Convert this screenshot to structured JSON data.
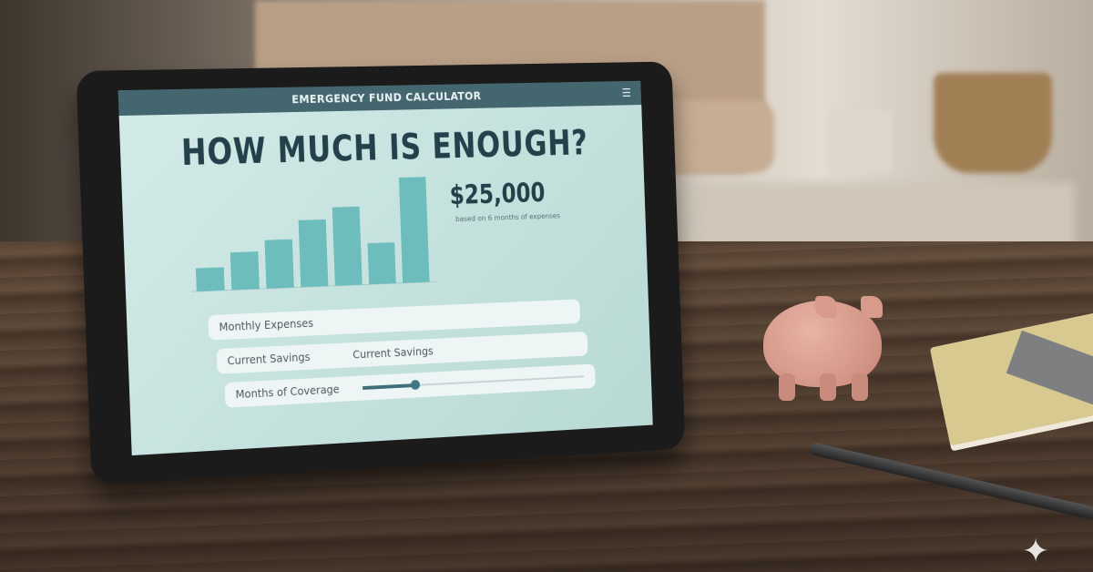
{
  "app": {
    "title": "EMERGENCY FUND CALCULATOR",
    "menu_icon": "hamburger-menu-icon",
    "headline": "HOW MUCH IS ENOUGH?",
    "result": {
      "amount": "$25,000",
      "caption": "based on 6 months of expenses"
    },
    "fields": [
      {
        "label": "Monthly Expenses",
        "value": ""
      },
      {
        "label": "Current Savings",
        "value": "Current Savings"
      },
      {
        "label": "Months of Coverage",
        "slider_fraction": 0.23
      }
    ]
  },
  "chart_data": {
    "type": "bar",
    "values": [
      27,
      44,
      57,
      79,
      93,
      49,
      126
    ],
    "color": "#6dbdbd",
    "grid": false
  },
  "colors": {
    "app_bar": "#44666f",
    "accent": "#3f7a82",
    "screen_bg": "#c6e2de",
    "headline": "#24404a"
  }
}
